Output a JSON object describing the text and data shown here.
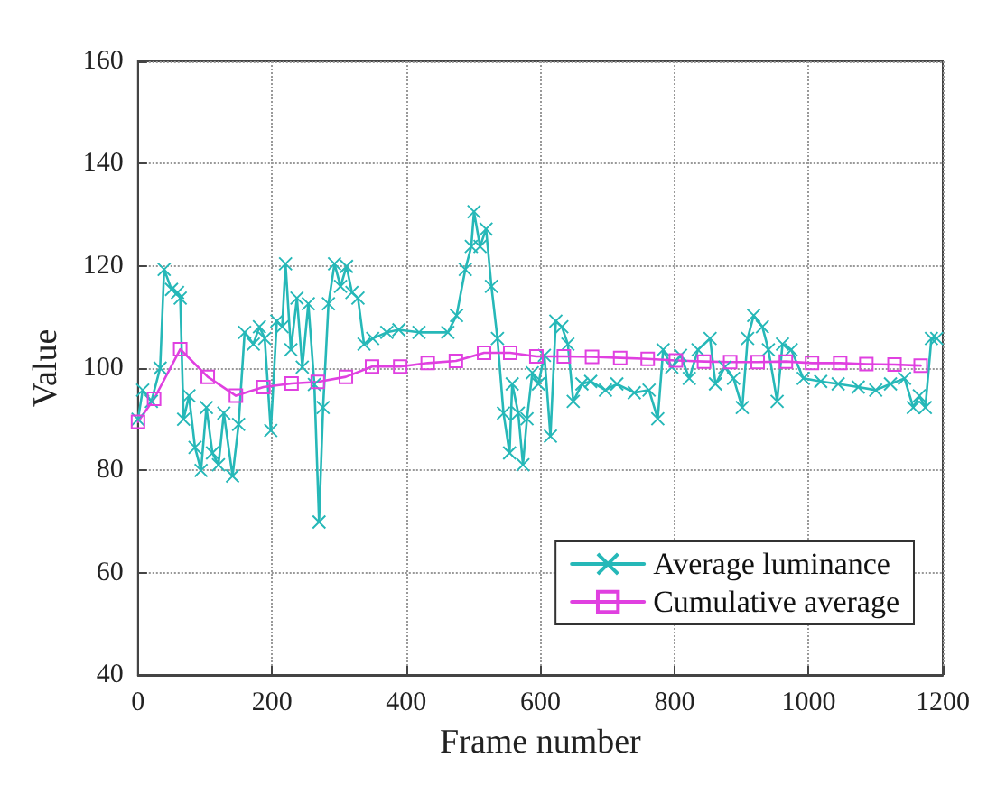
{
  "chart_data": {
    "type": "line",
    "xlabel": "Frame number",
    "ylabel": "Value",
    "xlim": [
      0,
      1200
    ],
    "xticks": [
      0,
      200,
      400,
      600,
      800,
      1000,
      1200
    ],
    "ylim": [
      40,
      160
    ],
    "yticks": [
      40,
      60,
      80,
      100,
      120,
      140,
      160
    ],
    "grid": true,
    "legend": "bottom right",
    "line_style": "solid",
    "series": [
      {
        "name": "Average luminance",
        "color": "#26b8b8",
        "marker": "cross",
        "x": [
          0,
          7,
          20,
          33,
          39,
          50,
          59,
          63,
          68,
          76,
          85,
          94,
          102,
          111,
          120,
          128,
          141,
          150,
          159,
          172,
          181,
          189,
          198,
          207,
          215,
          220,
          228,
          237,
          245,
          254,
          263,
          270,
          276,
          284,
          293,
          302,
          311,
          319,
          328,
          337,
          350,
          371,
          389,
          419,
          462,
          475,
          488,
          497,
          501,
          510,
          519,
          527,
          536,
          545,
          554,
          558,
          567,
          574,
          580,
          588,
          597,
          606,
          615,
          623,
          632,
          641,
          649,
          662,
          675,
          697,
          714,
          740,
          762,
          775,
          783,
          796,
          809,
          822,
          835,
          853,
          861,
          875,
          888,
          901,
          909,
          918,
          931,
          940,
          953,
          961,
          974,
          992,
          1018,
          1044,
          1074,
          1100,
          1122,
          1143,
          1156,
          1165,
          1174,
          1183,
          1191
        ],
        "values": [
          90,
          95.7,
          93.5,
          100,
          119.3,
          115.4,
          114.8,
          113.7,
          90,
          94.6,
          84.5,
          80,
          92.3,
          83.4,
          81.1,
          91.2,
          78.9,
          89,
          107,
          104.7,
          108.1,
          105.8,
          87.8,
          109.2,
          108.1,
          120.4,
          103.6,
          113.7,
          100.2,
          112.6,
          96.8,
          69.9,
          92.3,
          112.6,
          120.4,
          116,
          119.9,
          114.8,
          113.7,
          104.7,
          105.8,
          107,
          107.5,
          107,
          107,
          110.3,
          119.3,
          123.8,
          130.6,
          123.8,
          127.2,
          116,
          105.8,
          91.2,
          83.4,
          96.9,
          91.2,
          81.1,
          90.1,
          99.1,
          96.9,
          102.5,
          86.7,
          109.2,
          108.1,
          104.7,
          93.5,
          96.9,
          97.4,
          95.7,
          96.9,
          95.2,
          95.7,
          90.1,
          103.6,
          100.2,
          102.5,
          98,
          103.6,
          105.8,
          96.9,
          100.2,
          98,
          92.3,
          105.8,
          110.3,
          108.1,
          103.6,
          93.5,
          104.7,
          103.6,
          98,
          97.4,
          96.9,
          96.3,
          95.7,
          96.9,
          98,
          92.3,
          94.6,
          92.3,
          105.8,
          105.8
        ]
      },
      {
        "name": "Cumulative average",
        "color": "#e040e0",
        "marker": "square",
        "x": [
          0,
          24,
          63,
          104,
          146,
          187,
          229,
          268,
          310,
          349,
          391,
          432,
          474,
          516,
          555,
          594,
          635,
          677,
          719,
          760,
          802,
          844,
          883,
          924,
          966,
          1005,
          1047,
          1086,
          1128,
          1167
        ],
        "values": [
          89.5,
          94,
          103.7,
          98.3,
          94.6,
          96.3,
          97,
          97.3,
          98.3,
          100.3,
          100.3,
          101,
          101.4,
          103,
          103,
          102.3,
          102.3,
          102.2,
          102,
          101.8,
          101.5,
          101.3,
          101.2,
          101.2,
          101.3,
          101,
          101,
          100.8,
          100.7,
          100.5
        ]
      }
    ]
  }
}
